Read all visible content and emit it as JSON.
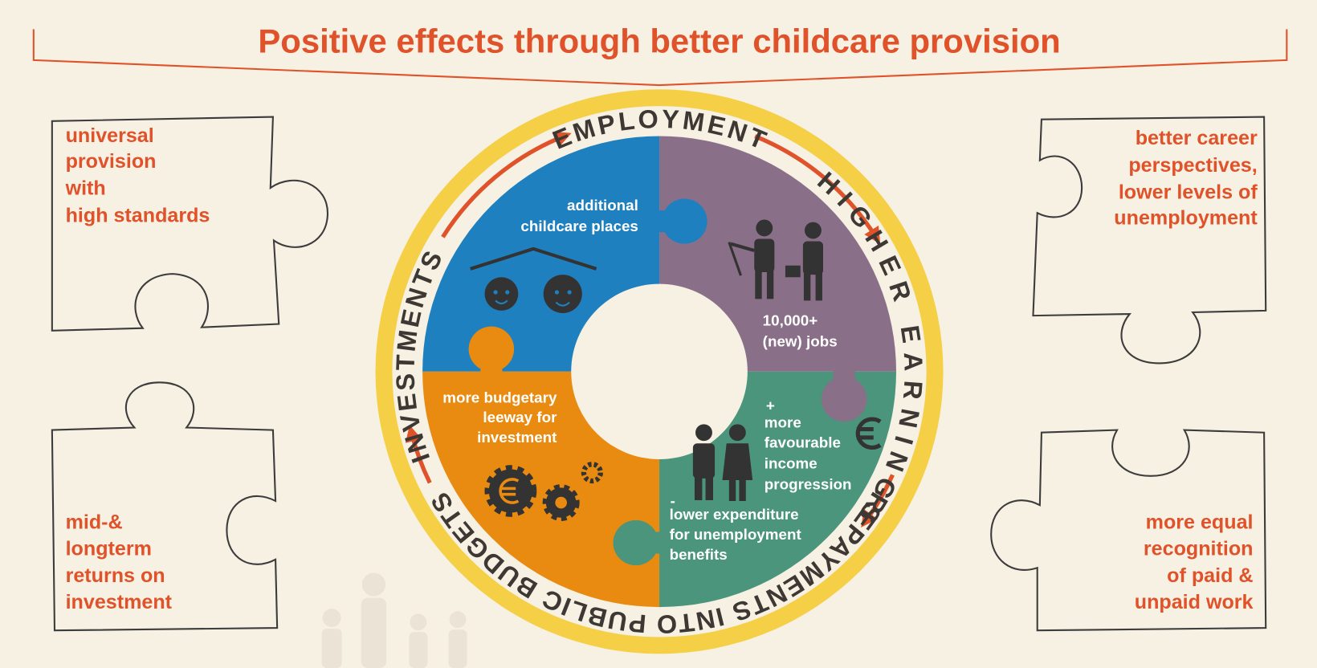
{
  "title": "Positive effects through better childcare provision",
  "cycle": {
    "labels": [
      "EMPLOYMENT",
      "HIGHER EARNINGS",
      "REPAYMENTS INTO PUBLIC BUDGETS",
      "INVESTMENTS"
    ]
  },
  "quadrants": [
    {
      "lines": [
        "additional",
        "childcare places"
      ]
    },
    {
      "lines": [
        "10,000+",
        "(new) jobs"
      ]
    },
    {
      "lines": [
        "more budgetary",
        "leeway for",
        "investment"
      ]
    },
    {
      "plus": "+",
      "lines": [
        "more",
        "favourable",
        "income",
        "progression"
      ],
      "minus": "-",
      "lower_lines": [
        "lower expenditure",
        "for unemployment",
        "benefits"
      ]
    }
  ],
  "corners": [
    {
      "lines": [
        "universal",
        "provision",
        "with",
        "high standards"
      ]
    },
    {
      "lines": [
        "better career",
        "perspectives,",
        "lower levels of",
        "unemployment"
      ]
    },
    {
      "lines": [
        "mid-&",
        "longterm",
        "returns on",
        "investment"
      ]
    },
    {
      "lines": [
        "more equal",
        "recognition",
        "of paid &",
        "unpaid work"
      ]
    }
  ]
}
